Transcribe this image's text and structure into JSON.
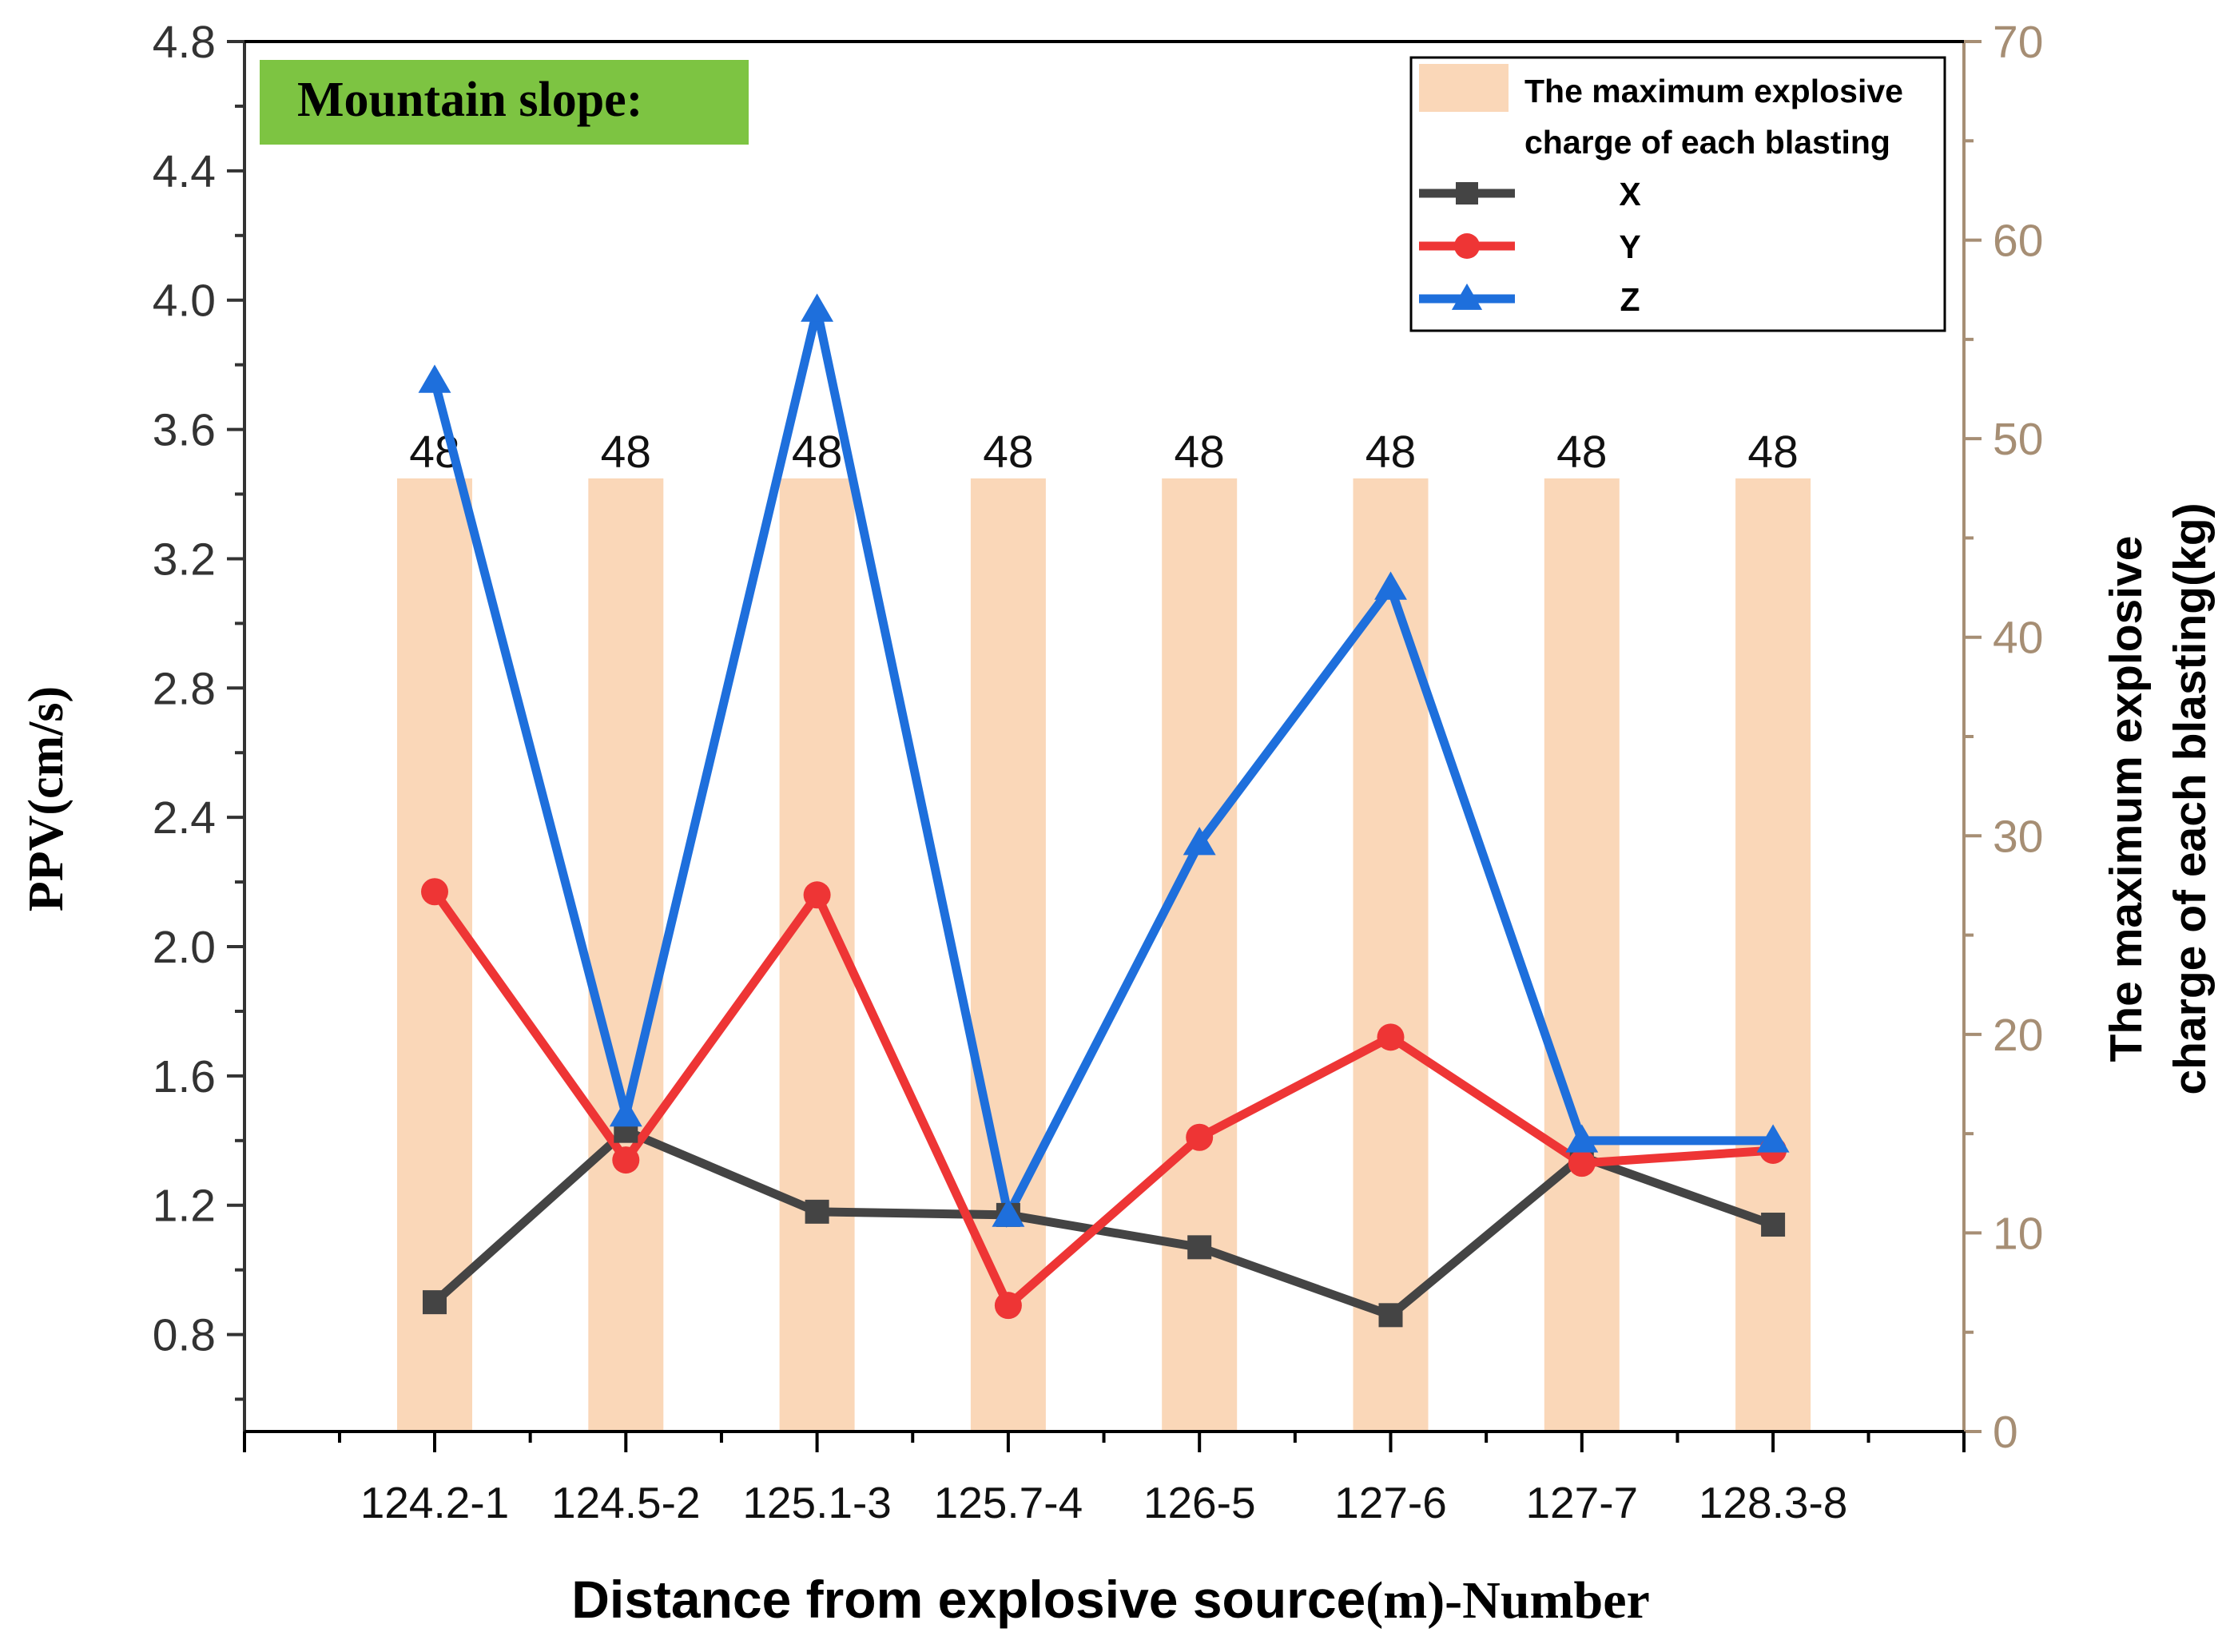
{
  "chart_data": {
    "type": "bar+line",
    "badge": "Mountain slope:",
    "categories": [
      "124.2-1",
      "124.5-2",
      "125.1-3",
      "125.7-4",
      "126-5",
      "127-6",
      "127-7",
      "128.3-8"
    ],
    "bars": {
      "name": "The maximum explosive charge of each blasting",
      "name_line1": "The maximum explosive",
      "name_line2": "charge of each blasting",
      "axis": "right",
      "values": [
        48,
        48,
        48,
        48,
        48,
        48,
        48,
        48
      ],
      "labels": [
        "48",
        "48",
        "48",
        "48",
        "48",
        "48",
        "48",
        "48"
      ],
      "color": "#fad7b8"
    },
    "series": [
      {
        "name": "X",
        "marker": "square",
        "color": "#444444",
        "values": [
          0.9,
          1.43,
          1.18,
          1.17,
          1.07,
          0.86,
          1.35,
          1.14
        ]
      },
      {
        "name": "Y",
        "marker": "circle",
        "color": "#ee3535",
        "values": [
          2.17,
          1.34,
          2.16,
          0.89,
          1.41,
          1.72,
          1.33,
          1.37
        ]
      },
      {
        "name": "Z",
        "marker": "triangle",
        "color": "#1e6fdc",
        "values": [
          3.75,
          1.48,
          3.97,
          1.17,
          2.32,
          3.11,
          1.4,
          1.4
        ]
      }
    ],
    "ylim": [
      0.5,
      4.8
    ],
    "yticks": [
      "0.8",
      "1.2",
      "1.6",
      "2.0",
      "2.4",
      "2.8",
      "3.2",
      "3.6",
      "4.0",
      "4.4",
      "4.8"
    ],
    "y2lim": [
      0,
      70
    ],
    "y2ticks": [
      "0",
      "10",
      "20",
      "30",
      "40",
      "50",
      "60",
      "70"
    ],
    "ylabel": "PPV(cm/s)",
    "y2label_line1": "The maximum explosive",
    "y2label_line2": "charge of each blasting(kg)",
    "xlabel_main": "Distance from explosive source",
    "xlabel_tail": "(m)-Number",
    "legend_position": "top-right",
    "colors": {
      "badge_bg": "#7dc442",
      "right_axis": "#a68e74",
      "left_axis": "#333333"
    }
  }
}
